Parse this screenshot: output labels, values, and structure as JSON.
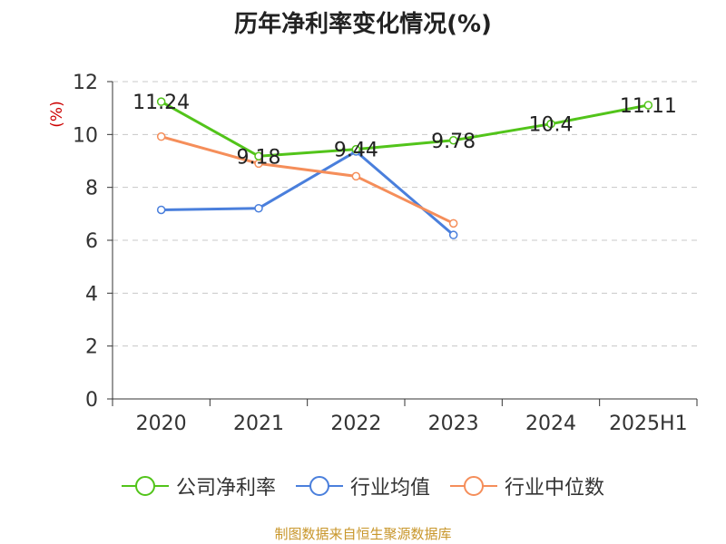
{
  "chart_data": {
    "type": "line",
    "title": "历年净利率变化情况(%)",
    "ylabel": "(%)",
    "xlabel": "",
    "categories": [
      "2020",
      "2021",
      "2022",
      "2023",
      "2024",
      "2025H1"
    ],
    "ylim": [
      0,
      12
    ],
    "yticks": [
      0,
      2,
      4,
      6,
      8,
      10,
      12
    ],
    "grid": true,
    "legend_position": "bottom",
    "series": [
      {
        "name": "公司净利率",
        "color": "#52c41a",
        "values": [
          11.24,
          9.18,
          9.44,
          9.78,
          10.4,
          11.11
        ],
        "labels": [
          "11.24",
          "9.18",
          "9.44",
          "9.78",
          "10.4",
          "11.11"
        ]
      },
      {
        "name": "行业均值",
        "color": "#4a7fdc",
        "values": [
          7.15,
          7.21,
          9.36,
          6.2,
          null,
          null
        ]
      },
      {
        "name": "行业中位数",
        "color": "#f58e5a",
        "values": [
          9.92,
          8.9,
          8.42,
          6.64,
          null,
          null
        ]
      }
    ]
  },
  "source_note": "制图数据来自恒生聚源数据库"
}
